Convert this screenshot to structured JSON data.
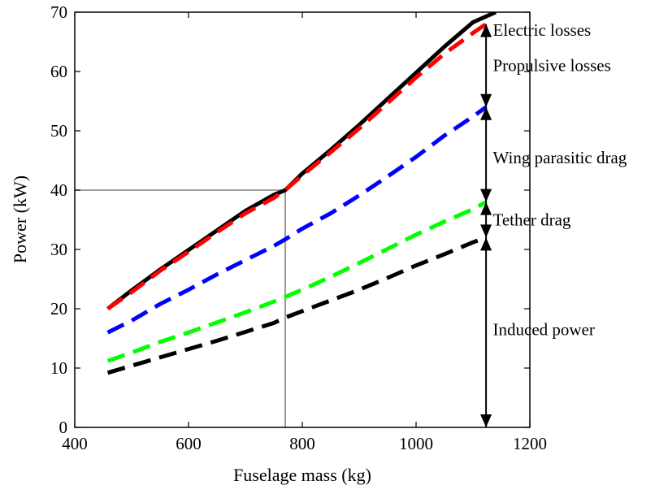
{
  "chart_data": {
    "type": "line",
    "title": "",
    "xlabel": "Fuselage mass (kg)",
    "ylabel": "Power (kW)",
    "xlim": [
      400,
      1200
    ],
    "ylim": [
      0,
      70
    ],
    "x_ticks": [
      400,
      600,
      800,
      1000,
      1200
    ],
    "y_ticks": [
      0,
      10,
      20,
      30,
      40,
      50,
      60,
      70
    ],
    "grid": false,
    "legend": "none",
    "series": [
      {
        "color": "#000000",
        "style": "solid",
        "x": [
          458,
          500,
          550,
          600,
          650,
          700,
          750,
          770,
          800,
          850,
          900,
          950,
          1000,
          1050,
          1100,
          1140
        ],
        "y": [
          20.0,
          23.1,
          26.6,
          29.9,
          33.2,
          36.5,
          39.2,
          40.0,
          42.8,
          46.8,
          51.0,
          55.4,
          59.8,
          64.2,
          68.3,
          70.0
        ]
      },
      {
        "color": "#ff0000",
        "style": "dashed",
        "x": [
          458,
          500,
          550,
          600,
          650,
          700,
          750,
          770,
          800,
          850,
          900,
          950,
          1000,
          1050,
          1100,
          1123
        ],
        "y": [
          20.0,
          22.8,
          26.4,
          29.6,
          32.9,
          36.1,
          38.7,
          40.0,
          42.5,
          46.4,
          50.4,
          54.7,
          59.0,
          63.0,
          66.5,
          68.0
        ]
      },
      {
        "color": "#0000ff",
        "style": "dashed",
        "x": [
          458,
          500,
          550,
          600,
          650,
          700,
          750,
          770,
          800,
          850,
          900,
          950,
          1000,
          1050,
          1100,
          1123
        ],
        "y": [
          16.0,
          18.0,
          20.8,
          23.2,
          25.8,
          28.2,
          30.6,
          31.7,
          33.5,
          36.1,
          39.1,
          42.3,
          45.6,
          49.2,
          52.4,
          54.0
        ]
      },
      {
        "color": "#00ff00",
        "style": "dashed",
        "x": [
          458,
          500,
          550,
          600,
          650,
          700,
          750,
          770,
          800,
          850,
          900,
          950,
          1000,
          1050,
          1100,
          1123
        ],
        "y": [
          11.2,
          12.6,
          14.4,
          16.0,
          17.7,
          19.4,
          21.2,
          22.0,
          23.2,
          25.4,
          27.7,
          30.1,
          32.5,
          34.7,
          36.8,
          38.0
        ]
      },
      {
        "color": "#000000",
        "style": "dashed",
        "x": [
          458,
          500,
          550,
          600,
          650,
          700,
          750,
          770,
          800,
          850,
          900,
          950,
          1000,
          1050,
          1100,
          1123
        ],
        "y": [
          9.2,
          10.4,
          11.8,
          13.2,
          14.6,
          16.1,
          17.6,
          18.5,
          19.6,
          21.4,
          23.2,
          25.2,
          27.3,
          29.2,
          31.2,
          32.0
        ]
      }
    ],
    "reference_lines": {
      "color": "#808080",
      "x": 770,
      "y": 40
    },
    "annotations": [
      {
        "text": "Electric losses",
        "x": 1135,
        "y": 67.0
      },
      {
        "text": "Propulsive losses",
        "x": 1135,
        "y": 61.0
      },
      {
        "text": "Wing parasitic drag",
        "x": 1135,
        "y": 45.5
      },
      {
        "text": "Tether drag",
        "x": 1135,
        "y": 35.0
      },
      {
        "text": "Induced power",
        "x": 1135,
        "y": 16.5
      }
    ],
    "dimension_arrows": {
      "x": 1123,
      "segments": [
        [
          54.0,
          68.0
        ],
        [
          38.0,
          54.0
        ],
        [
          32.0,
          38.0
        ],
        [
          0,
          32.0
        ]
      ]
    }
  }
}
